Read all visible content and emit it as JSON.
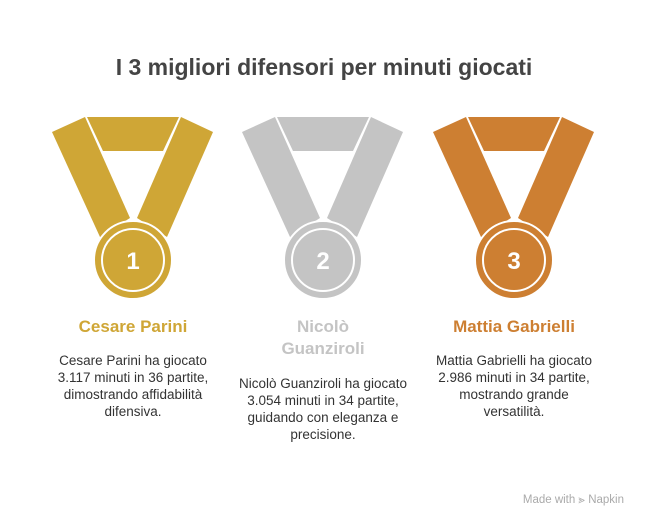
{
  "title": "I 3 migliori difensori per minuti giocati",
  "players": [
    {
      "rank": "1",
      "name": "Cesare Parini",
      "description": "Cesare Parini ha giocato 3.117 minuti in 36 partite, dimostrando affidabilità difensiva.",
      "color": "#CFA636"
    },
    {
      "rank": "2",
      "name": "Nicolò Guanziroli",
      "description": "Nicolò Guanziroli ha giocato 3.054 minuti in 34 partite, guidando con eleganza e precisione.",
      "color": "#C4C4C4"
    },
    {
      "rank": "3",
      "name": "Mattia Gabrielli",
      "description": "Mattia Gabrielli ha giocato 2.986 minuti in 34 partite, mostrando grande versatilità.",
      "color": "#CD7F32"
    }
  ],
  "footer": {
    "made_with": "Made with",
    "brand": "Napkin"
  }
}
